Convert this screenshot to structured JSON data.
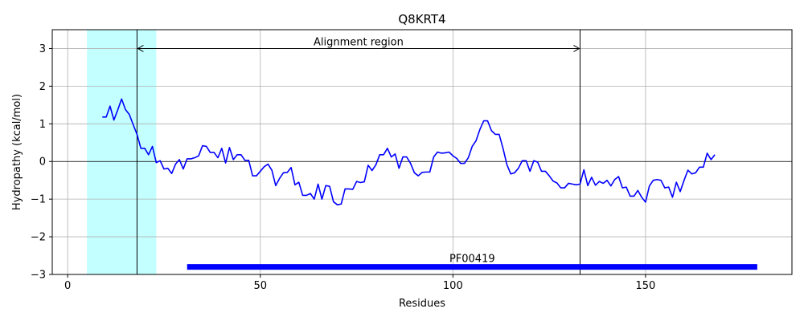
{
  "chart_data": {
    "type": "line",
    "title": "Q8KRT4",
    "xlabel": "Residues",
    "ylabel": "Hydropathy (kcal/mol)",
    "xlim": [
      -4,
      188
    ],
    "ylim": [
      -3,
      3.5
    ],
    "xticks": [
      0,
      50,
      100,
      150
    ],
    "yticks": [
      -3,
      -2,
      -1,
      0,
      1,
      2,
      3
    ],
    "tick_labels": {
      "x": [
        "0",
        "50",
        "100",
        "150"
      ],
      "y": [
        "−3",
        "−2",
        "−1",
        "0",
        "1",
        "2",
        "3"
      ]
    },
    "grid": true,
    "series": [
      {
        "color": "#0000ff",
        "x": [
          9,
          10,
          11,
          12,
          13,
          14,
          15,
          16,
          17,
          18,
          19,
          20,
          21,
          22,
          23,
          24,
          25,
          26,
          27,
          28,
          29,
          30,
          31,
          32,
          33,
          34,
          35,
          36,
          37,
          38,
          39,
          40,
          41,
          42,
          43,
          44,
          45,
          46,
          47,
          48,
          49,
          50,
          51,
          52,
          53,
          54,
          55,
          56,
          57,
          58,
          59,
          60,
          61,
          62,
          63,
          64,
          65,
          66,
          67,
          68,
          69,
          70,
          71,
          72,
          73,
          74,
          75,
          76,
          77,
          78,
          79,
          80,
          81,
          82,
          83,
          84,
          85,
          86,
          87,
          88,
          89,
          90,
          91,
          92,
          93,
          94,
          95,
          96,
          97,
          98,
          99,
          100,
          101,
          102,
          103,
          104,
          105,
          106,
          107,
          108,
          109,
          110,
          111,
          112,
          113,
          114,
          115,
          116,
          117,
          118,
          119,
          120,
          121,
          122,
          123,
          124,
          125,
          126,
          127,
          128,
          129,
          130,
          131,
          132,
          133,
          134,
          135,
          136,
          137,
          138,
          139,
          140,
          141,
          142,
          143,
          144,
          145,
          146,
          147,
          148,
          149,
          150,
          151,
          152,
          153,
          154,
          155,
          156,
          157,
          158,
          159,
          160,
          161,
          162,
          163,
          164,
          165,
          166,
          167,
          168
        ],
        "y": [
          1.18,
          1.18,
          1.47,
          1.1,
          1.37,
          1.66,
          1.38,
          1.25,
          0.98,
          0.72,
          0.35,
          0.35,
          0.18,
          0.4,
          -0.03,
          0.02,
          -0.2,
          -0.18,
          -0.32,
          -0.07,
          0.05,
          -0.2,
          0.07,
          0.07,
          0.1,
          0.15,
          0.42,
          0.4,
          0.24,
          0.24,
          0.1,
          0.35,
          -0.04,
          0.37,
          0.05,
          0.18,
          0.18,
          0.03,
          0.03,
          -0.38,
          -0.38,
          -0.26,
          -0.14,
          -0.07,
          -0.23,
          -0.64,
          -0.45,
          -0.3,
          -0.29,
          -0.16,
          -0.62,
          -0.55,
          -0.9,
          -0.9,
          -0.85,
          -1.0,
          -0.6,
          -1.0,
          -0.64,
          -0.66,
          -1.07,
          -1.15,
          -1.13,
          -0.73,
          -0.73,
          -0.74,
          -0.53,
          -0.56,
          -0.54,
          -0.1,
          -0.24,
          -0.09,
          0.18,
          0.18,
          0.35,
          0.12,
          0.2,
          -0.18,
          0.12,
          0.12,
          -0.05,
          -0.3,
          -0.38,
          -0.29,
          -0.28,
          -0.28,
          0.12,
          0.25,
          0.22,
          0.23,
          0.25,
          0.15,
          0.08,
          -0.05,
          -0.05,
          0.1,
          0.4,
          0.55,
          0.85,
          1.08,
          1.08,
          0.82,
          0.72,
          0.72,
          0.35,
          -0.08,
          -0.33,
          -0.3,
          -0.18,
          0.02,
          0.02,
          -0.26,
          0.02,
          -0.02,
          -0.26,
          -0.26,
          -0.38,
          -0.52,
          -0.57,
          -0.7,
          -0.7,
          -0.58,
          -0.6,
          -0.62,
          -0.6,
          -0.22,
          -0.64,
          -0.42,
          -0.63,
          -0.53,
          -0.58,
          -0.5,
          -0.65,
          -0.48,
          -0.4,
          -0.7,
          -0.68,
          -0.92,
          -0.92,
          -0.77,
          -0.95,
          -1.08,
          -0.65,
          -0.5,
          -0.48,
          -0.5,
          -0.7,
          -0.68,
          -0.95,
          -0.55,
          -0.8,
          -0.5,
          -0.23,
          -0.33,
          -0.3,
          -0.15,
          -0.15,
          0.22,
          0.05,
          0.18
        ]
      }
    ],
    "highlight_region": {
      "x_start": 5,
      "x_end": 23,
      "color": "#c4ffff"
    },
    "vertical_lines": [
      18,
      133
    ],
    "annotation": {
      "text": "Alignment region",
      "x_start": 18,
      "x_end": 133,
      "y": 3
    },
    "domain_bar": {
      "label": "PF00419",
      "x_start": 31,
      "x_end": 179,
      "y": -2.8,
      "color": "#0000ff"
    }
  }
}
